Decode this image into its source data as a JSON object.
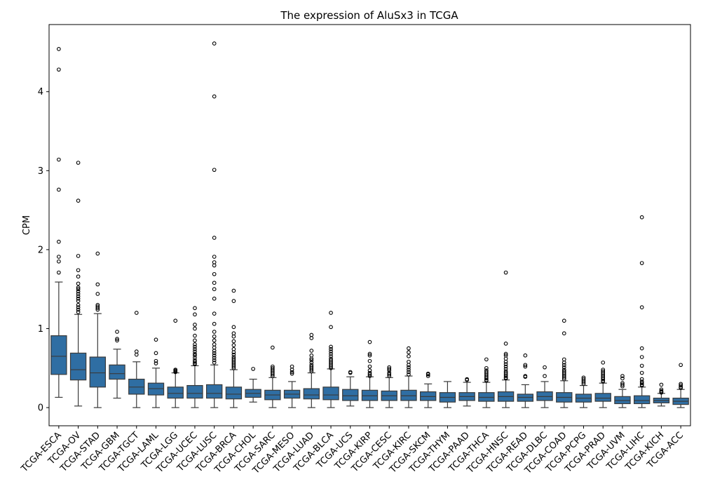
{
  "chart_data": {
    "type": "box",
    "title": "The expression of AluSx3 in TCGA",
    "xlabel": "",
    "ylabel": "CPM",
    "ylim": [
      -0.23,
      4.85
    ],
    "yticks": [
      0,
      1,
      2,
      3,
      4
    ],
    "grid": false,
    "box_color": "#2f6ea3",
    "categories": [
      "TCGA-ESCA",
      "TCGA-OV",
      "TCGA-STAD",
      "TCGA-GBM",
      "TCGA-TGCT",
      "TCGA-LAML",
      "TCGA-LGG",
      "TCGA-UCEC",
      "TCGA-LUSC",
      "TCGA-BRCA",
      "TCGA-CHOL",
      "TCGA-SARC",
      "TCGA-MESO",
      "TCGA-LUAD",
      "TCGA-BLCA",
      "TCGA-UCS",
      "TCGA-KIRP",
      "TCGA-CESC",
      "TCGA-KIRC",
      "TCGA-SKCM",
      "TCGA-THYM",
      "TCGA-PAAD",
      "TCGA-THCA",
      "TCGA-HNSC",
      "TCGA-READ",
      "TCGA-DLBC",
      "TCGA-COAD",
      "TCGA-PCPG",
      "TCGA-PRAD",
      "TCGA-UVM",
      "TCGA-LIHC",
      "TCGA-KICH",
      "TCGA-ACC"
    ],
    "boxes": [
      {
        "whislo": 0.13,
        "q1": 0.42,
        "med": 0.65,
        "q3": 0.91,
        "whishi": 1.59,
        "fliers": [
          4.54,
          4.28,
          3.14,
          2.76,
          2.1,
          1.91,
          1.85,
          1.71
        ]
      },
      {
        "whislo": 0.02,
        "q1": 0.35,
        "med": 0.48,
        "q3": 0.69,
        "whishi": 1.18,
        "fliers": [
          3.1,
          2.62,
          1.92,
          1.74,
          1.66,
          1.57,
          1.52,
          1.5,
          1.47,
          1.44,
          1.41,
          1.38,
          1.35,
          1.3,
          1.27,
          1.24,
          1.21
        ]
      },
      {
        "whislo": 0.0,
        "q1": 0.26,
        "med": 0.44,
        "q3": 0.64,
        "whishi": 1.19,
        "fliers": [
          1.95,
          1.56,
          1.44,
          1.3,
          1.28,
          1.26,
          1.24
        ]
      },
      {
        "whislo": 0.12,
        "q1": 0.36,
        "med": 0.43,
        "q3": 0.54,
        "whishi": 0.74,
        "fliers": [
          0.96,
          0.87,
          0.85
        ]
      },
      {
        "whislo": 0.0,
        "q1": 0.17,
        "med": 0.26,
        "q3": 0.36,
        "whishi": 0.58,
        "fliers": [
          1.2,
          0.71,
          0.67
        ]
      },
      {
        "whislo": 0.0,
        "q1": 0.16,
        "med": 0.24,
        "q3": 0.31,
        "whishi": 0.5,
        "fliers": [
          0.86,
          0.69,
          0.59,
          0.56
        ]
      },
      {
        "whislo": 0.0,
        "q1": 0.12,
        "med": 0.18,
        "q3": 0.26,
        "whishi": 0.44,
        "fliers": [
          1.1,
          0.48,
          0.47,
          0.46,
          0.45
        ]
      },
      {
        "whislo": 0.0,
        "q1": 0.12,
        "med": 0.18,
        "q3": 0.28,
        "whishi": 0.53,
        "fliers": [
          1.26,
          1.18,
          1.05,
          1.0,
          0.91,
          0.85,
          0.8,
          0.77,
          0.74,
          0.71,
          0.68,
          0.66,
          0.63,
          0.6,
          0.58,
          0.56,
          0.55
        ]
      },
      {
        "whislo": 0.0,
        "q1": 0.12,
        "med": 0.18,
        "q3": 0.29,
        "whishi": 0.54,
        "fliers": [
          4.61,
          3.94,
          3.01,
          2.15,
          1.91,
          1.84,
          1.8,
          1.69,
          1.58,
          1.5,
          1.38,
          1.19,
          1.06,
          0.96,
          0.9,
          0.85,
          0.8,
          0.76,
          0.72,
          0.69,
          0.66,
          0.63,
          0.6,
          0.57
        ]
      },
      {
        "whislo": 0.0,
        "q1": 0.11,
        "med": 0.17,
        "q3": 0.26,
        "whishi": 0.48,
        "fliers": [
          1.48,
          1.35,
          1.02,
          0.94,
          0.9,
          0.84,
          0.79,
          0.74,
          0.7,
          0.67,
          0.64,
          0.62,
          0.6,
          0.58,
          0.56,
          0.54,
          0.52,
          0.5
        ]
      },
      {
        "whislo": 0.07,
        "q1": 0.13,
        "med": 0.18,
        "q3": 0.23,
        "whishi": 0.36,
        "fliers": [
          0.49
        ]
      },
      {
        "whislo": 0.0,
        "q1": 0.1,
        "med": 0.16,
        "q3": 0.22,
        "whishi": 0.38,
        "fliers": [
          0.76,
          0.52,
          0.5,
          0.48,
          0.46,
          0.44,
          0.42,
          0.4
        ]
      },
      {
        "whislo": 0.0,
        "q1": 0.12,
        "med": 0.17,
        "q3": 0.22,
        "whishi": 0.33,
        "fliers": [
          0.52,
          0.48,
          0.45,
          0.43
        ]
      },
      {
        "whislo": 0.0,
        "q1": 0.11,
        "med": 0.16,
        "q3": 0.24,
        "whishi": 0.44,
        "fliers": [
          0.92,
          0.88,
          0.72,
          0.66,
          0.62,
          0.6,
          0.57,
          0.54,
          0.52,
          0.5,
          0.48,
          0.46
        ]
      },
      {
        "whislo": 0.0,
        "q1": 0.1,
        "med": 0.16,
        "q3": 0.26,
        "whishi": 0.49,
        "fliers": [
          1.2,
          1.02,
          0.77,
          0.74,
          0.71,
          0.68,
          0.65,
          0.62,
          0.6,
          0.58,
          0.56,
          0.54,
          0.52,
          0.5
        ]
      },
      {
        "whislo": 0.02,
        "q1": 0.09,
        "med": 0.15,
        "q3": 0.23,
        "whishi": 0.39,
        "fliers": [
          0.45,
          0.44
        ]
      },
      {
        "whislo": 0.0,
        "q1": 0.09,
        "med": 0.15,
        "q3": 0.22,
        "whishi": 0.39,
        "fliers": [
          0.83,
          0.68,
          0.66,
          0.59,
          0.52,
          0.47,
          0.44,
          0.42,
          0.4
        ]
      },
      {
        "whislo": 0.0,
        "q1": 0.09,
        "med": 0.15,
        "q3": 0.21,
        "whishi": 0.38,
        "fliers": [
          0.51,
          0.49,
          0.47,
          0.44,
          0.42,
          0.4
        ]
      },
      {
        "whislo": 0.0,
        "q1": 0.09,
        "med": 0.15,
        "q3": 0.22,
        "whishi": 0.4,
        "fliers": [
          0.75,
          0.7,
          0.65,
          0.58,
          0.54,
          0.51,
          0.48,
          0.45,
          0.42
        ]
      },
      {
        "whislo": 0.0,
        "q1": 0.09,
        "med": 0.14,
        "q3": 0.2,
        "whishi": 0.3,
        "fliers": [
          0.43,
          0.42,
          0.4
        ]
      },
      {
        "whislo": 0.0,
        "q1": 0.07,
        "med": 0.13,
        "q3": 0.19,
        "whishi": 0.33,
        "fliers": []
      },
      {
        "whislo": 0.02,
        "q1": 0.09,
        "med": 0.14,
        "q3": 0.19,
        "whishi": 0.32,
        "fliers": [
          0.36,
          0.35
        ]
      },
      {
        "whislo": 0.0,
        "q1": 0.08,
        "med": 0.13,
        "q3": 0.19,
        "whishi": 0.32,
        "fliers": [
          0.61,
          0.5,
          0.47,
          0.45,
          0.43,
          0.41,
          0.39,
          0.37,
          0.35,
          0.34
        ]
      },
      {
        "whislo": 0.0,
        "q1": 0.08,
        "med": 0.14,
        "q3": 0.2,
        "whishi": 0.35,
        "fliers": [
          1.71,
          0.81,
          0.68,
          0.66,
          0.62,
          0.58,
          0.55,
          0.52,
          0.49,
          0.46,
          0.44,
          0.42,
          0.4,
          0.38,
          0.37
        ]
      },
      {
        "whislo": 0.0,
        "q1": 0.08,
        "med": 0.13,
        "q3": 0.17,
        "whishi": 0.29,
        "fliers": [
          0.66,
          0.54,
          0.52,
          0.4,
          0.39
        ]
      },
      {
        "whislo": 0.0,
        "q1": 0.09,
        "med": 0.14,
        "q3": 0.2,
        "whishi": 0.33,
        "fliers": [
          0.51,
          0.4
        ]
      },
      {
        "whislo": 0.0,
        "q1": 0.07,
        "med": 0.13,
        "q3": 0.19,
        "whishi": 0.34,
        "fliers": [
          1.1,
          0.94,
          0.61,
          0.57,
          0.54,
          0.51,
          0.48,
          0.46,
          0.44,
          0.42,
          0.4,
          0.38,
          0.36
        ]
      },
      {
        "whislo": 0.0,
        "q1": 0.07,
        "med": 0.12,
        "q3": 0.17,
        "whishi": 0.28,
        "fliers": [
          0.38,
          0.36,
          0.34,
          0.32,
          0.3
        ]
      },
      {
        "whislo": 0.0,
        "q1": 0.08,
        "med": 0.12,
        "q3": 0.18,
        "whishi": 0.31,
        "fliers": [
          0.57,
          0.48,
          0.46,
          0.44,
          0.42,
          0.4,
          0.38,
          0.36,
          0.34,
          0.33
        ]
      },
      {
        "whislo": 0.0,
        "q1": 0.05,
        "med": 0.09,
        "q3": 0.14,
        "whishi": 0.23,
        "fliers": [
          0.4,
          0.37,
          0.31,
          0.29,
          0.27
        ]
      },
      {
        "whislo": 0.0,
        "q1": 0.05,
        "med": 0.09,
        "q3": 0.15,
        "whishi": 0.26,
        "fliers": [
          2.41,
          1.83,
          1.27,
          0.75,
          0.64,
          0.53,
          0.44,
          0.36,
          0.33,
          0.31,
          0.29,
          0.28
        ]
      },
      {
        "whislo": 0.02,
        "q1": 0.06,
        "med": 0.09,
        "q3": 0.12,
        "whishi": 0.18,
        "fliers": [
          0.29,
          0.23,
          0.21,
          0.2,
          0.19
        ]
      },
      {
        "whislo": 0.0,
        "q1": 0.04,
        "med": 0.08,
        "q3": 0.12,
        "whishi": 0.23,
        "fliers": [
          0.54,
          0.3,
          0.28,
          0.26,
          0.25
        ]
      }
    ]
  }
}
